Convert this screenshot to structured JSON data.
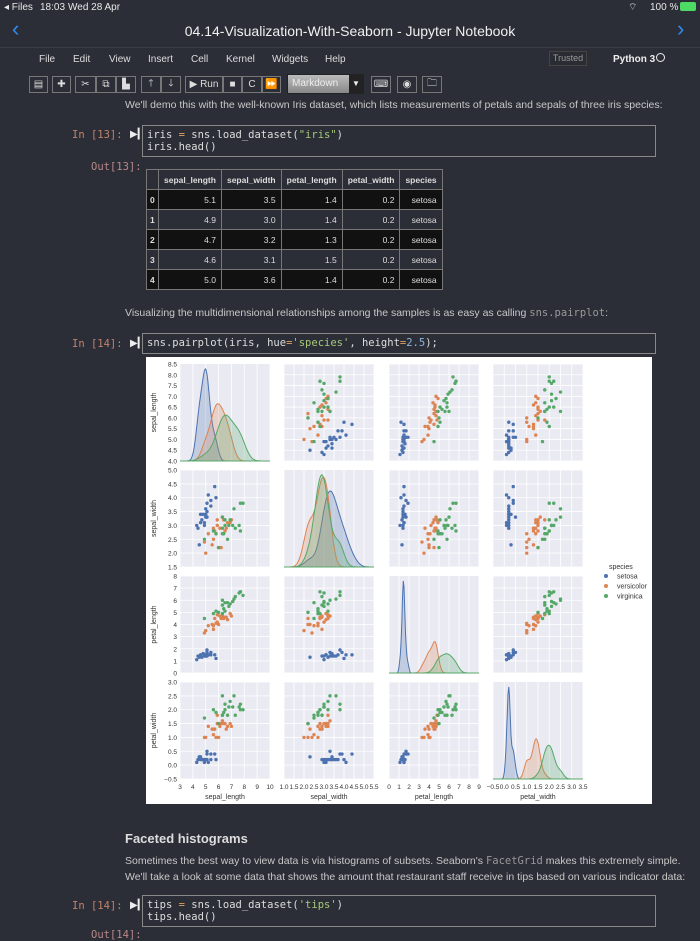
{
  "status": {
    "back_app": "◂ Files",
    "time": "18:03",
    "date": "Wed 28 Apr",
    "battery": "100 %"
  },
  "window": {
    "title": "04.14-Visualization-With-Seaborn - Jupyter Notebook"
  },
  "menu": [
    "File",
    "Edit",
    "View",
    "Insert",
    "Cell",
    "Kernel",
    "Widgets",
    "Help"
  ],
  "trusted": "Trusted",
  "kernel": "Python 3",
  "toolbar": {
    "run_label": "Run",
    "cell_type": "Markdown"
  },
  "cells": {
    "intro": "We'll demo this with the well-known Iris dataset, which lists measurements of petals and sepals of three iris species:",
    "in13_prompt": "In [13]:",
    "out13_prompt": "Out[13]:",
    "in13_code": {
      "l1a": "iris ",
      "l1op": "=",
      "l1b": " sns.load_dataset(",
      "l1s": "\"iris\"",
      "l1c": ")",
      "l2": "iris.head()"
    },
    "viz_text": "Visualizing the multidimensional relationships among the samples is as easy as calling ",
    "viz_code": "sns.pairplot",
    "viz_end": ":",
    "in14_prompt": "In [14]:",
    "in14_code": {
      "a": "sns.pairplot(iris, hue",
      "op": "=",
      "s": "'species'",
      "b": ", height",
      "op2": "=",
      "n": "2.5",
      "c": ");"
    },
    "heading": "Faceted histograms",
    "p1a": "Sometimes the best way to view data is via histograms of subsets. Seaborn's ",
    "p1code": "FacetGrid",
    "p1b": " makes this extremely simple.",
    "p2": "We'll take a look at some data that shows the amount that restaurant staff receive in tips based on various indicator data:",
    "in14b_prompt": "In [14]:",
    "in14b_code": {
      "l1a": "tips ",
      "l1op": "=",
      "l1b": " sns.load_dataset(",
      "l1s": "'tips'",
      "l1c": ")",
      "l2": "tips.head()"
    },
    "out14b_prompt": "Out[14]:"
  },
  "table": {
    "columns": [
      "",
      "sepal_length",
      "sepal_width",
      "petal_length",
      "petal_width",
      "species"
    ],
    "rows": [
      [
        "0",
        "5.1",
        "3.5",
        "1.4",
        "0.2",
        "setosa"
      ],
      [
        "1",
        "4.9",
        "3.0",
        "1.4",
        "0.2",
        "setosa"
      ],
      [
        "2",
        "4.7",
        "3.2",
        "1.3",
        "0.2",
        "setosa"
      ],
      [
        "3",
        "4.6",
        "3.1",
        "1.5",
        "0.2",
        "setosa"
      ],
      [
        "4",
        "5.0",
        "3.6",
        "1.4",
        "0.2",
        "setosa"
      ]
    ]
  },
  "chart_data": {
    "type": "scatter",
    "variables": [
      "sepal_length",
      "sepal_width",
      "petal_length",
      "petal_width"
    ],
    "axes": {
      "sepal_length": {
        "range": [
          3,
          10
        ],
        "ticks": [
          "3",
          "4",
          "5",
          "6",
          "7",
          "8",
          "9",
          "10"
        ],
        "yrange": [
          4.0,
          8.5
        ],
        "yticks": [
          "4.0",
          "4.5",
          "5.0",
          "5.5",
          "6.0",
          "6.5",
          "7.0",
          "7.5",
          "8.0",
          "8.5"
        ]
      },
      "sepal_width": {
        "range": [
          1.0,
          5.5
        ],
        "ticks": [
          "1.0",
          "1.5",
          "2.0",
          "2.5",
          "3.0",
          "3.5",
          "4.0",
          "4.5",
          "5.0",
          "5.5"
        ],
        "yrange": [
          1.5,
          5.0
        ],
        "yticks": [
          "1.5",
          "2.0",
          "2.5",
          "3.0",
          "3.5",
          "4.0",
          "4.5",
          "5.0"
        ]
      },
      "petal_length": {
        "range": [
          0,
          9
        ],
        "ticks": [
          "0",
          "1",
          "2",
          "3",
          "4",
          "5",
          "6",
          "7",
          "8",
          "9"
        ],
        "yrange": [
          0,
          8
        ],
        "yticks": [
          "0",
          "1",
          "2",
          "3",
          "4",
          "5",
          "6",
          "7",
          "8"
        ]
      },
      "petal_width": {
        "range": [
          -0.5,
          3.5
        ],
        "ticks": [
          "−0.5",
          "0.0",
          "0.5",
          "1.0",
          "1.5",
          "2.0",
          "2.5",
          "3.0",
          "3.5"
        ],
        "yrange": [
          -0.5,
          3.0
        ],
        "yticks": [
          "−0.5",
          "0.0",
          "0.5",
          "1.0",
          "1.5",
          "2.0",
          "2.5",
          "3.0"
        ]
      }
    },
    "diagonal": "kde",
    "grid": true,
    "legend": {
      "title": "species",
      "placement": "right",
      "entries": [
        "setosa",
        "versicolor",
        "virginica"
      ]
    },
    "colors": {
      "setosa": "#4c72b0",
      "versicolor": "#dd8452",
      "virginica": "#55a868"
    },
    "series": [
      {
        "name": "setosa",
        "points": [
          [
            5.1,
            3.5,
            1.4,
            0.2
          ],
          [
            4.9,
            3.0,
            1.4,
            0.2
          ],
          [
            4.7,
            3.2,
            1.3,
            0.2
          ],
          [
            4.6,
            3.1,
            1.5,
            0.2
          ],
          [
            5.0,
            3.6,
            1.4,
            0.2
          ],
          [
            5.4,
            3.9,
            1.7,
            0.4
          ],
          [
            4.6,
            3.4,
            1.4,
            0.3
          ],
          [
            5.0,
            3.4,
            1.5,
            0.2
          ],
          [
            4.4,
            2.9,
            1.4,
            0.2
          ],
          [
            4.9,
            3.1,
            1.5,
            0.1
          ],
          [
            5.4,
            3.7,
            1.5,
            0.2
          ],
          [
            4.8,
            3.4,
            1.6,
            0.2
          ],
          [
            4.3,
            3.0,
            1.1,
            0.1
          ],
          [
            5.8,
            4.0,
            1.2,
            0.2
          ],
          [
            5.7,
            4.4,
            1.5,
            0.4
          ],
          [
            4.5,
            2.3,
            1.3,
            0.3
          ],
          [
            5.1,
            3.8,
            1.9,
            0.4
          ],
          [
            5.0,
            3.3,
            1.4,
            0.2
          ],
          [
            5.2,
            4.1,
            1.5,
            0.1
          ],
          [
            5.1,
            3.3,
            1.7,
            0.5
          ]
        ]
      },
      {
        "name": "versicolor",
        "points": [
          [
            7.0,
            3.2,
            4.7,
            1.4
          ],
          [
            6.4,
            3.2,
            4.5,
            1.5
          ],
          [
            6.9,
            3.1,
            4.9,
            1.5
          ],
          [
            5.5,
            2.3,
            4.0,
            1.3
          ],
          [
            6.5,
            2.8,
            4.6,
            1.5
          ],
          [
            5.7,
            2.8,
            4.5,
            1.3
          ],
          [
            6.3,
            3.3,
            4.7,
            1.6
          ],
          [
            4.9,
            2.4,
            3.3,
            1.0
          ],
          [
            6.6,
            2.9,
            4.6,
            1.3
          ],
          [
            5.2,
            2.7,
            3.9,
            1.4
          ],
          [
            5.0,
            2.0,
            3.5,
            1.0
          ],
          [
            5.9,
            3.0,
            4.2,
            1.5
          ],
          [
            6.0,
            2.2,
            4.0,
            1.0
          ],
          [
            6.1,
            2.9,
            4.7,
            1.4
          ],
          [
            5.6,
            2.9,
            3.6,
            1.3
          ],
          [
            6.7,
            3.1,
            4.4,
            1.4
          ],
          [
            5.8,
            2.7,
            4.1,
            1.0
          ],
          [
            6.2,
            2.2,
            4.5,
            1.5
          ],
          [
            5.6,
            2.5,
            3.9,
            1.1
          ],
          [
            5.9,
            3.2,
            4.8,
            1.8
          ]
        ]
      },
      {
        "name": "virginica",
        "points": [
          [
            6.3,
            3.3,
            6.0,
            2.5
          ],
          [
            5.8,
            2.7,
            5.1,
            1.9
          ],
          [
            7.1,
            3.0,
            5.9,
            2.1
          ],
          [
            6.3,
            2.9,
            5.6,
            1.8
          ],
          [
            6.5,
            3.0,
            5.8,
            2.2
          ],
          [
            7.6,
            3.0,
            6.6,
            2.1
          ],
          [
            4.9,
            2.5,
            4.5,
            1.7
          ],
          [
            7.3,
            2.9,
            6.3,
            1.8
          ],
          [
            6.7,
            2.5,
            5.8,
            1.8
          ],
          [
            7.2,
            3.6,
            6.1,
            2.5
          ],
          [
            6.5,
            3.2,
            5.1,
            2.0
          ],
          [
            6.4,
            2.7,
            5.3,
            1.9
          ],
          [
            6.8,
            3.0,
            5.5,
            2.1
          ],
          [
            7.7,
            3.8,
            6.7,
            2.2
          ],
          [
            7.9,
            3.8,
            6.4,
            2.0
          ],
          [
            6.0,
            2.2,
            5.0,
            1.5
          ],
          [
            6.9,
            3.2,
            5.7,
            2.3
          ],
          [
            5.6,
            2.8,
            4.9,
            2.0
          ],
          [
            7.7,
            2.8,
            6.7,
            2.0
          ],
          [
            6.3,
            2.7,
            4.9,
            1.8
          ]
        ]
      }
    ]
  }
}
